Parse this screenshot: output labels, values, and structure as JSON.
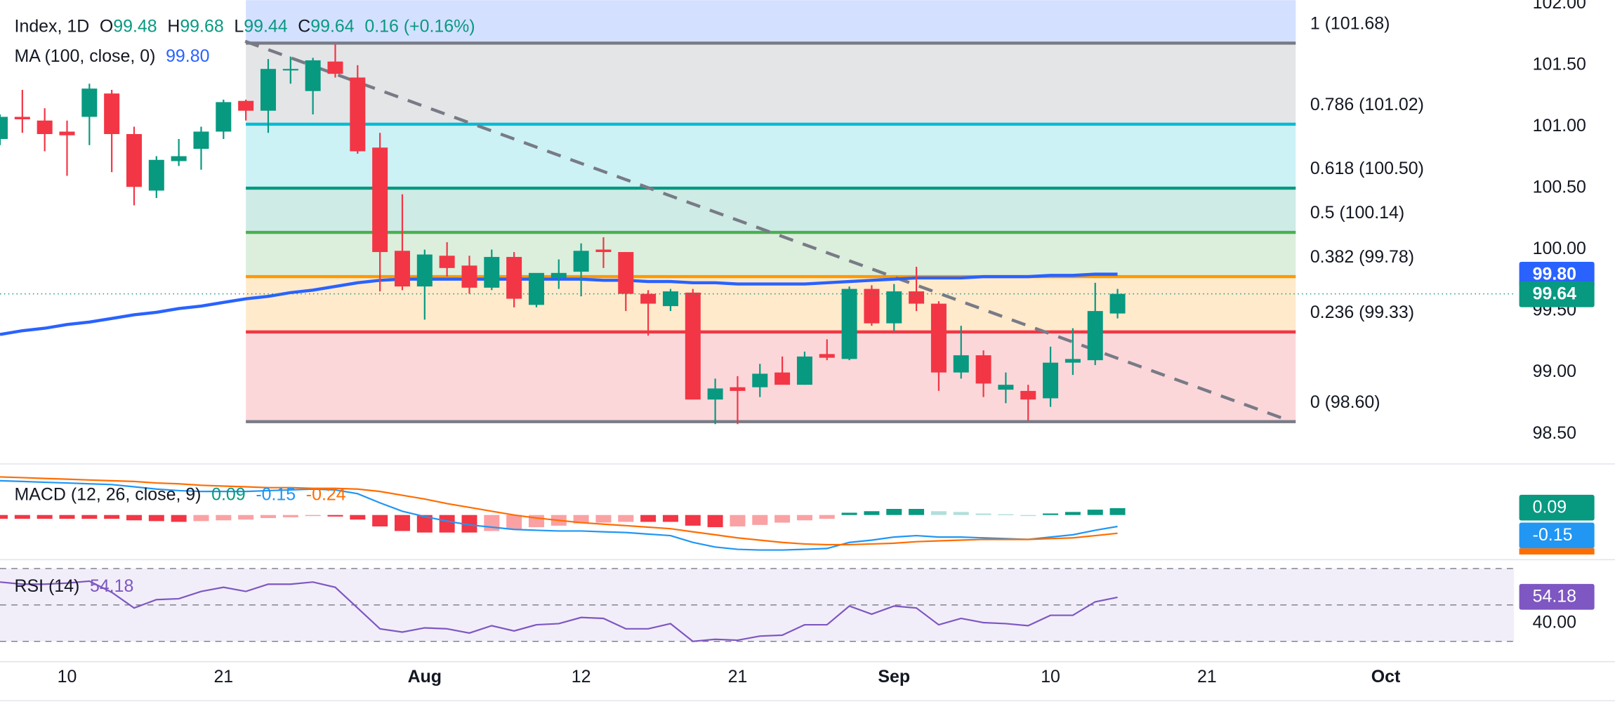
{
  "chart_data": [
    {
      "type": "candlestick",
      "title": "Index, 1D",
      "ohlc_labels": [
        "O",
        "H",
        "L",
        "C"
      ],
      "change_label": "0.16 (+0.16%)",
      "up_color": "#089981",
      "down_color": "#f23645",
      "open": [
        100.9,
        101.08,
        101.05,
        100.96,
        101.08,
        101.27,
        100.94,
        100.48,
        100.72,
        100.82,
        100.96,
        101.21,
        101.13,
        101.46,
        101.29,
        101.53,
        101.4,
        100.83,
        99.99,
        99.7,
        99.95,
        99.87,
        99.69,
        99.94,
        99.55,
        99.77,
        99.82,
        100.0,
        99.98,
        99.64,
        99.54,
        99.65,
        98.78,
        98.88,
        98.88,
        99.0,
        98.9,
        99.15,
        99.11,
        99.68,
        99.4,
        99.66,
        99.56,
        99.0,
        99.14,
        98.86,
        98.85,
        98.79,
        99.08,
        99.1,
        99.48
      ],
      "high": [
        101.1,
        101.3,
        101.15,
        101.05,
        101.35,
        101.3,
        101.0,
        100.76,
        100.9,
        101.0,
        101.22,
        101.22,
        101.55,
        101.57,
        101.56,
        101.67,
        101.5,
        100.95,
        100.45,
        100.0,
        100.06,
        99.95,
        100.0,
        99.98,
        99.8,
        99.92,
        100.05,
        100.1,
        99.98,
        99.67,
        99.68,
        99.68,
        98.95,
        98.97,
        99.07,
        99.13,
        99.17,
        99.27,
        99.7,
        99.71,
        99.72,
        99.86,
        99.58,
        99.38,
        99.18,
        99.0,
        98.9,
        99.21,
        99.36,
        99.73,
        99.68
      ],
      "low": [
        100.85,
        100.95,
        100.8,
        100.6,
        100.85,
        100.63,
        100.36,
        100.42,
        100.68,
        100.65,
        100.9,
        101.05,
        100.95,
        101.35,
        101.1,
        101.4,
        100.78,
        99.66,
        99.67,
        99.43,
        99.78,
        99.64,
        99.67,
        99.53,
        99.53,
        99.68,
        99.62,
        99.85,
        99.5,
        99.3,
        99.5,
        98.78,
        98.58,
        98.58,
        98.8,
        98.92,
        98.9,
        99.1,
        99.1,
        99.38,
        99.34,
        99.5,
        98.85,
        98.95,
        98.8,
        98.75,
        98.61,
        98.72,
        98.98,
        99.06,
        99.44
      ],
      "close": [
        101.08,
        101.06,
        100.94,
        100.93,
        101.31,
        100.94,
        100.51,
        100.73,
        100.76,
        100.96,
        101.2,
        101.13,
        101.47,
        101.47,
        101.54,
        101.43,
        100.8,
        99.98,
        99.7,
        99.96,
        99.85,
        99.69,
        99.94,
        99.6,
        99.81,
        99.81,
        99.99,
        99.98,
        99.64,
        99.56,
        99.66,
        98.78,
        98.87,
        98.85,
        98.99,
        98.9,
        99.13,
        99.12,
        99.68,
        99.4,
        99.66,
        99.56,
        99.0,
        99.14,
        98.91,
        98.9,
        98.78,
        99.08,
        99.11,
        99.5,
        99.64
      ],
      "ma": {
        "name": "MA (100, close, 0)",
        "color": "#2962ff",
        "value_label": "99.80",
        "values": [
          99.31,
          99.34,
          99.36,
          99.39,
          99.41,
          99.44,
          99.47,
          99.49,
          99.52,
          99.54,
          99.57,
          99.6,
          99.62,
          99.65,
          99.67,
          99.7,
          99.73,
          99.75,
          99.76,
          99.76,
          99.76,
          99.76,
          99.76,
          99.76,
          99.76,
          99.76,
          99.76,
          99.75,
          99.75,
          99.74,
          99.74,
          99.73,
          99.73,
          99.72,
          99.72,
          99.72,
          99.72,
          99.73,
          99.74,
          99.75,
          99.76,
          99.77,
          99.77,
          99.77,
          99.78,
          99.78,
          99.78,
          99.79,
          99.79,
          99.8,
          99.8
        ]
      },
      "fib": [
        {
          "value": 101.68,
          "label": "1 (101.68)",
          "color": "#787b86"
        },
        {
          "value": 101.02,
          "label": "0.786 (101.02)",
          "color": "#00bcd4"
        },
        {
          "value": 100.5,
          "label": "0.618 (100.50)",
          "color": "#089981"
        },
        {
          "value": 100.14,
          "label": "0.5 (100.14)",
          "color": "#4caf50"
        },
        {
          "value": 99.78,
          "label": "0.382 (99.78)",
          "color": "#ff9800"
        },
        {
          "value": 99.33,
          "label": "0.236 (99.33)",
          "color": "#f23645"
        },
        {
          "value": 98.6,
          "label": "0 (98.60)",
          "color": "#787b86"
        }
      ],
      "ylim": [
        98.26,
        102.03
      ],
      "yticks": [
        {
          "value": 102,
          "label": "102.00"
        },
        {
          "value": 101.5,
          "label": "101.50"
        },
        {
          "value": 101,
          "label": "101.00"
        },
        {
          "value": 100.5,
          "label": "100.50"
        },
        {
          "value": 100,
          "label": "100.00"
        },
        {
          "value": 99.5,
          "label": "99.50"
        },
        {
          "value": 99,
          "label": "99.00"
        },
        {
          "value": 98.5,
          "label": "98.50"
        }
      ],
      "xlim": [
        0,
        67.74
      ],
      "xticks": [
        {
          "value": 3,
          "label": "10"
        },
        {
          "value": 10,
          "label": "21"
        },
        {
          "value": 19,
          "label": "Aug"
        },
        {
          "value": 26,
          "label": "12"
        },
        {
          "value": 33,
          "label": "21"
        },
        {
          "value": 40,
          "label": "Sep"
        },
        {
          "value": 47,
          "label": "10"
        },
        {
          "value": 54,
          "label": "21"
        },
        {
          "value": 62,
          "label": "Oct"
        }
      ]
    },
    {
      "type": "macd",
      "name": "MACD (12, 26, close, 9)",
      "ylim": [
        -0.58,
        0.65
      ],
      "macd": {
        "color": "#2196f3",
        "values": [
          0.45,
          0.44,
          0.43,
          0.42,
          0.41,
          0.4,
          0.37,
          0.34,
          0.32,
          0.31,
          0.31,
          0.31,
          0.32,
          0.33,
          0.34,
          0.33,
          0.28,
          0.16,
          0.05,
          -0.02,
          -0.08,
          -0.13,
          -0.16,
          -0.19,
          -0.2,
          -0.21,
          -0.21,
          -0.22,
          -0.23,
          -0.25,
          -0.27,
          -0.36,
          -0.42,
          -0.45,
          -0.46,
          -0.46,
          -0.45,
          -0.44,
          -0.36,
          -0.33,
          -0.29,
          -0.27,
          -0.29,
          -0.29,
          -0.3,
          -0.31,
          -0.32,
          -0.29,
          -0.26,
          -0.2,
          -0.15
        ]
      },
      "signal": {
        "color": "#ff6d00",
        "values": [
          0.5,
          0.49,
          0.48,
          0.47,
          0.46,
          0.45,
          0.44,
          0.42,
          0.41,
          0.39,
          0.38,
          0.37,
          0.36,
          0.36,
          0.35,
          0.35,
          0.34,
          0.31,
          0.26,
          0.21,
          0.15,
          0.1,
          0.05,
          0.0,
          -0.04,
          -0.07,
          -0.1,
          -0.12,
          -0.14,
          -0.16,
          -0.18,
          -0.22,
          -0.26,
          -0.3,
          -0.33,
          -0.36,
          -0.38,
          -0.39,
          -0.39,
          -0.38,
          -0.37,
          -0.35,
          -0.34,
          -0.33,
          -0.32,
          -0.32,
          -0.32,
          -0.31,
          -0.3,
          -0.27,
          -0.24
        ]
      },
      "histogram": {
        "colors": [
          "#089981",
          "#b2dfdb",
          "#f23645",
          "#faa1a4"
        ],
        "values": [
          -0.05,
          -0.05,
          -0.05,
          -0.05,
          -0.05,
          -0.05,
          -0.07,
          -0.08,
          -0.09,
          -0.08,
          -0.07,
          -0.06,
          -0.04,
          -0.03,
          -0.01,
          -0.02,
          -0.06,
          -0.15,
          -0.21,
          -0.23,
          -0.23,
          -0.23,
          -0.21,
          -0.19,
          -0.16,
          -0.14,
          -0.11,
          -0.1,
          -0.09,
          -0.09,
          -0.09,
          -0.14,
          -0.16,
          -0.15,
          -0.13,
          -0.1,
          -0.07,
          -0.05,
          0.03,
          0.05,
          0.08,
          0.08,
          0.05,
          0.04,
          0.02,
          0.01,
          0.0,
          0.02,
          0.04,
          0.07,
          0.09
        ]
      }
    },
    {
      "type": "rsi",
      "name": "RSI (14)",
      "color": "#7e57c2",
      "ylim": [
        19.7,
        74
      ],
      "levels": [
        30,
        50,
        70
      ],
      "yticks": [
        {
          "value": 40,
          "label": "40.00"
        }
      ],
      "values": [
        62.6,
        61.4,
        61.4,
        62.0,
        63.1,
        56.9,
        48.3,
        52.9,
        53.4,
        57.4,
        59.7,
        57.4,
        61.4,
        61.4,
        62.6,
        59.7,
        48.3,
        36.9,
        35.1,
        37.4,
        36.9,
        34.6,
        38.6,
        35.7,
        39.1,
        39.7,
        43.1,
        42.6,
        36.9,
        36.9,
        39.7,
        30.0,
        31.1,
        30.6,
        32.9,
        33.4,
        39.1,
        39.1,
        49.4,
        44.9,
        49.4,
        48.3,
        39.1,
        42.6,
        40.3,
        39.7,
        38.6,
        44.3,
        44.3,
        51.7,
        54.18
      ]
    }
  ]
}
